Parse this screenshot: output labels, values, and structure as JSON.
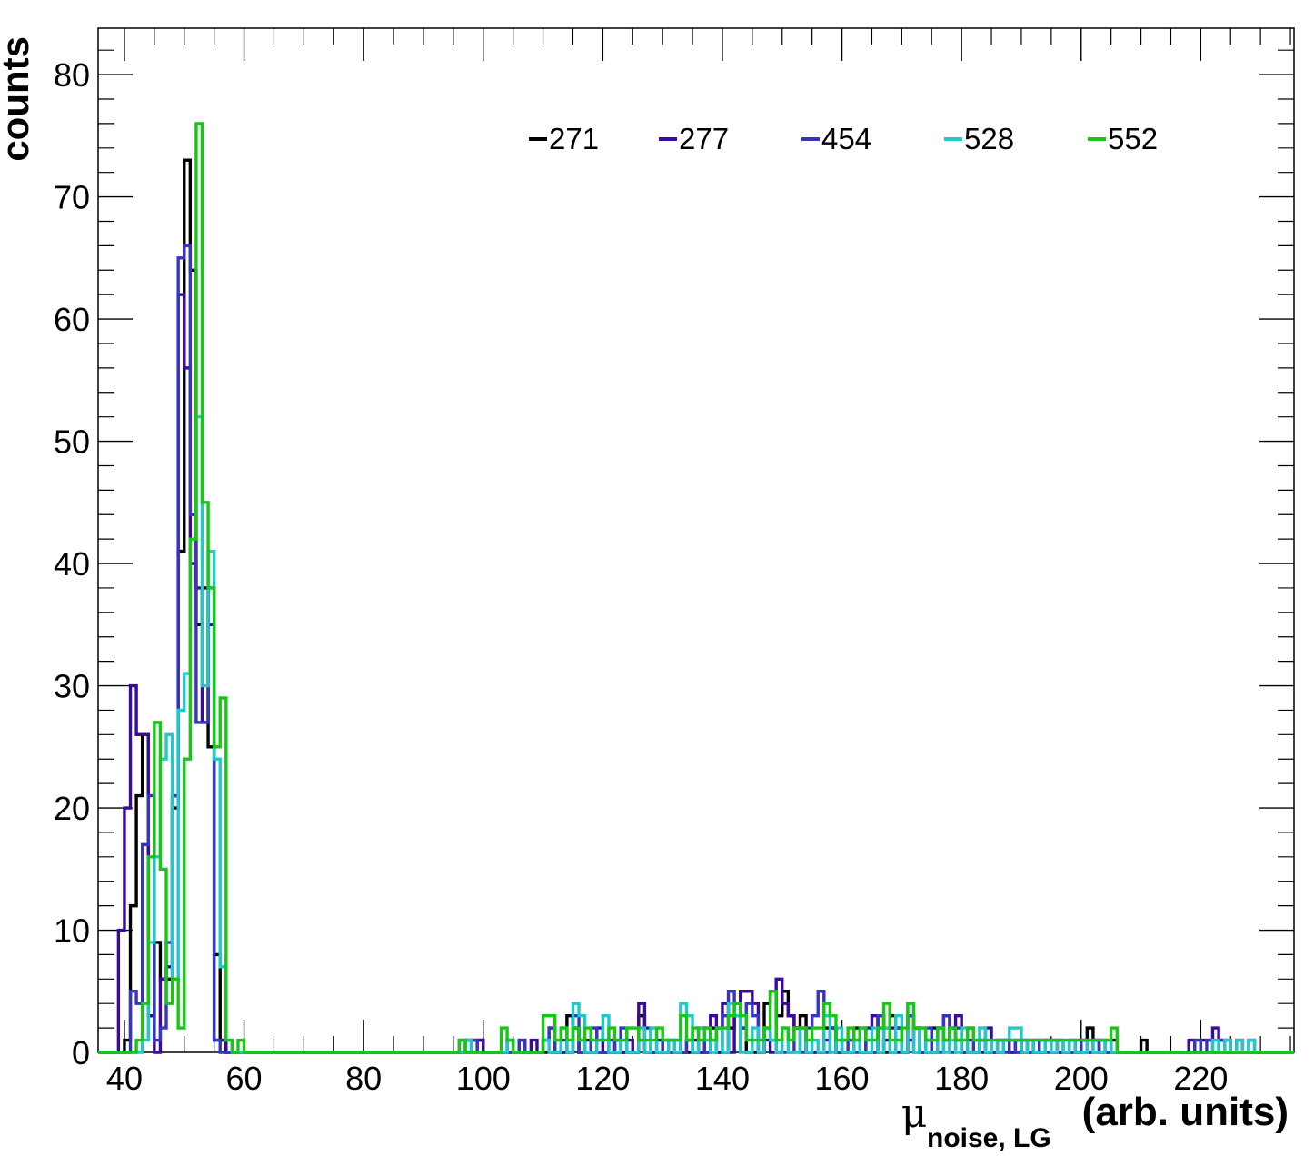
{
  "chart_data": {
    "type": "histogram",
    "xlabel": {
      "symbol": "μ",
      "subscript": "noise, LG",
      "suffix": "(arb. units)"
    },
    "ylabel": "counts",
    "xlim": [
      35.6,
      235.6
    ],
    "ylim": [
      0,
      83.8
    ],
    "bin_width": 1,
    "xticks": [
      40,
      60,
      80,
      100,
      120,
      140,
      160,
      180,
      200,
      220
    ],
    "yticks": [
      0,
      10,
      20,
      30,
      40,
      50,
      60,
      70,
      80
    ],
    "legend_position": "top, horizontal",
    "series": [
      {
        "name": "271",
        "color": "#000000",
        "x": [
          40,
          41,
          42,
          43,
          44,
          45,
          46,
          47,
          48,
          49,
          50,
          51,
          52,
          53,
          54,
          55,
          56,
          57,
          97,
          98,
          99,
          114,
          115,
          126,
          138,
          141,
          142,
          143,
          147,
          148,
          149,
          150,
          151,
          152,
          153,
          157,
          158,
          162,
          166,
          168,
          169,
          171,
          172,
          175,
          176,
          177,
          178,
          179,
          183,
          186,
          187,
          189,
          194,
          195,
          200,
          201,
          202,
          205,
          210
        ],
        "counts": [
          1,
          12,
          21,
          26,
          3,
          9,
          6,
          6,
          20,
          41,
          73,
          64,
          35,
          38,
          25,
          8,
          1,
          0,
          1,
          1,
          1,
          3,
          2,
          3,
          2,
          2,
          3,
          2,
          4,
          5,
          3,
          5,
          3,
          2,
          3,
          2,
          2,
          2,
          3,
          3,
          2,
          3,
          2,
          2,
          2,
          1,
          2,
          1,
          1,
          1,
          1,
          1,
          1,
          1,
          1,
          2,
          1,
          1,
          1
        ]
      },
      {
        "name": "277",
        "color": "#3a0a9a",
        "x": [
          39,
          40,
          41,
          42,
          43,
          44,
          45,
          46,
          47,
          48,
          49,
          50,
          51,
          52,
          53,
          54,
          55,
          56,
          57,
          96,
          97,
          99,
          104,
          106,
          108,
          110,
          111,
          115,
          117,
          119,
          122,
          124,
          126,
          127,
          129,
          131,
          134,
          135,
          137,
          138,
          140,
          142,
          143,
          144,
          145,
          147,
          148,
          149,
          150,
          151,
          152,
          153,
          157,
          158,
          160,
          161,
          162,
          164,
          165,
          167,
          168,
          171,
          172,
          174,
          176,
          177,
          178,
          179,
          181,
          182,
          184,
          187,
          190,
          192,
          194,
          198,
          200,
          203,
          218,
          219,
          220,
          221,
          222,
          223,
          224,
          226,
          228
        ],
        "counts": [
          10,
          20,
          30,
          26,
          26,
          3,
          0,
          6,
          7,
          21,
          62,
          56,
          40,
          38,
          27,
          35,
          1,
          1,
          0,
          1,
          1,
          1,
          1,
          1,
          1,
          1,
          2,
          2,
          1,
          2,
          1,
          1,
          4,
          2,
          1,
          1,
          1,
          1,
          2,
          3,
          4,
          4,
          5,
          5,
          4,
          1,
          0,
          6,
          4,
          3,
          2,
          2,
          1,
          2,
          1,
          1,
          1,
          2,
          3,
          1,
          2,
          1,
          2,
          1,
          2,
          3,
          2,
          3,
          1,
          1,
          2,
          1,
          1,
          1,
          1,
          1,
          1,
          1,
          1,
          0,
          1,
          1,
          2,
          1,
          1,
          1,
          1
        ]
      },
      {
        "name": "454",
        "color": "#3535c0",
        "x": [
          41,
          42,
          43,
          44,
          45,
          46,
          47,
          48,
          49,
          50,
          51,
          52,
          53,
          54,
          55,
          56,
          57,
          98,
          106,
          110,
          111,
          113,
          115,
          118,
          121,
          123,
          126,
          130,
          132,
          134,
          136,
          138,
          139,
          140,
          141,
          142,
          143,
          144,
          145,
          147,
          148,
          152,
          154,
          155,
          156,
          158,
          161,
          163,
          166,
          167,
          169,
          171,
          174,
          177,
          179,
          181,
          183,
          186,
          188,
          190,
          193,
          196,
          199,
          202,
          219,
          221,
          223
        ],
        "counts": [
          5,
          4,
          17,
          21,
          1,
          2,
          9,
          21,
          65,
          66,
          44,
          27,
          27,
          38,
          1,
          0,
          0,
          1,
          1,
          1,
          2,
          1,
          3,
          2,
          1,
          2,
          1,
          1,
          1,
          1,
          2,
          1,
          2,
          3,
          5,
          4,
          2,
          4,
          3,
          2,
          1,
          2,
          2,
          3,
          5,
          2,
          1,
          2,
          3,
          2,
          2,
          3,
          2,
          3,
          2,
          2,
          1,
          1,
          1,
          1,
          1,
          1,
          1,
          1,
          1,
          1,
          1
        ]
      },
      {
        "name": "528",
        "color": "#20c8c8",
        "x": [
          43,
          44,
          45,
          46,
          47,
          48,
          49,
          50,
          51,
          52,
          53,
          54,
          55,
          56,
          57,
          58,
          97,
          104,
          110,
          113,
          115,
          116,
          119,
          120,
          123,
          126,
          128,
          131,
          133,
          134,
          136,
          137,
          139,
          141,
          142,
          145,
          147,
          148,
          150,
          153,
          155,
          157,
          159,
          162,
          165,
          167,
          169,
          171,
          173,
          176,
          178,
          180,
          183,
          185,
          187,
          188,
          189,
          191,
          194,
          196,
          198,
          201,
          204,
          206,
          222,
          224,
          226,
          228,
          230
        ],
        "counts": [
          1,
          9,
          16,
          24,
          26,
          6,
          28,
          31,
          42,
          52,
          30,
          41,
          24,
          7,
          1,
          0,
          1,
          1,
          1,
          2,
          4,
          3,
          1,
          3,
          1,
          2,
          2,
          1,
          4,
          3,
          2,
          1,
          2,
          4,
          3,
          2,
          2,
          1,
          2,
          2,
          1,
          3,
          2,
          1,
          2,
          2,
          3,
          4,
          2,
          2,
          1,
          2,
          2,
          1,
          1,
          2,
          2,
          1,
          1,
          1,
          1,
          1,
          1,
          0,
          1,
          1,
          1,
          1,
          0
        ]
      },
      {
        "name": "552",
        "color": "#14c814",
        "x": [
          42,
          43,
          44,
          45,
          46,
          47,
          48,
          49,
          50,
          51,
          52,
          53,
          54,
          55,
          56,
          57,
          58,
          59,
          60,
          96,
          103,
          104,
          110,
          111,
          112,
          113,
          114,
          115,
          116,
          117,
          118,
          119,
          120,
          121,
          122,
          123,
          124,
          125,
          126,
          127,
          128,
          129,
          130,
          131,
          132,
          133,
          134,
          135,
          136,
          137,
          138,
          139,
          140,
          141,
          142,
          143,
          144,
          145,
          146,
          147,
          148,
          149,
          150,
          151,
          152,
          153,
          154,
          155,
          156,
          157,
          158,
          159,
          160,
          161,
          162,
          163,
          164,
          165,
          166,
          167,
          168,
          169,
          170,
          171,
          172,
          173,
          174,
          175,
          176,
          177,
          178,
          179,
          180,
          181,
          182,
          183,
          184,
          185,
          186,
          187,
          188,
          189,
          190,
          191,
          192,
          193,
          194,
          195,
          196,
          197,
          198,
          199,
          200,
          201,
          202,
          203,
          204,
          205,
          206
        ],
        "counts": [
          1,
          4,
          16,
          27,
          15,
          4,
          6,
          2,
          24,
          42,
          76,
          45,
          38,
          25,
          29,
          1,
          0,
          1,
          0,
          1,
          2,
          1,
          3,
          3,
          1,
          2,
          1,
          2,
          1,
          2,
          1,
          1,
          1,
          2,
          1,
          1,
          2,
          2,
          1,
          1,
          1,
          2,
          1,
          1,
          1,
          3,
          1,
          2,
          1,
          2,
          1,
          2,
          2,
          3,
          4,
          3,
          1,
          1,
          1,
          2,
          5,
          1,
          2,
          1,
          2,
          2,
          1,
          2,
          2,
          4,
          3,
          1,
          1,
          2,
          1,
          2,
          1,
          1,
          2,
          4,
          1,
          1,
          2,
          4,
          2,
          2,
          1,
          1,
          2,
          1,
          2,
          1,
          1,
          2,
          1,
          1,
          1,
          1,
          1,
          1,
          1,
          1,
          1,
          1,
          1,
          1,
          1,
          1,
          1,
          1,
          1,
          1,
          1,
          1,
          1,
          1,
          1,
          2,
          0
        ]
      }
    ]
  }
}
